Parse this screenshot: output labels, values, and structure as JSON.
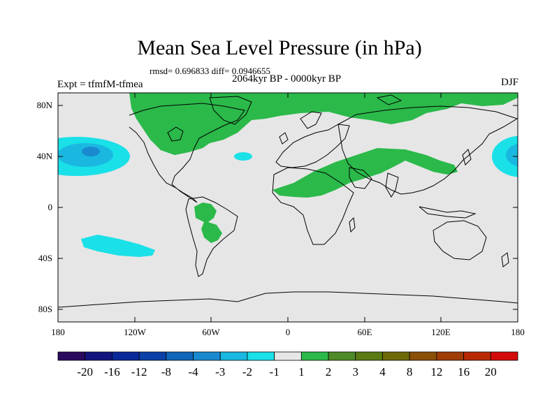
{
  "title": "Mean Sea Level Pressure (in hPa)",
  "stats": "rmsd= 0.696833 diff= 0.0946655",
  "period": "2064kyr BP - 0000kyr BP",
  "experiment": "Expt = tfmfM-tfmea",
  "season": "DJF",
  "lat_labels": [
    "80N",
    "40N",
    "0",
    "40S",
    "80S"
  ],
  "lon_labels": [
    "180",
    "120W",
    "60W",
    "0",
    "60E",
    "120E",
    "180"
  ],
  "colorbar": {
    "labels": [
      "-20",
      "-16",
      "-12",
      "-8",
      "-4",
      "-3",
      "-2",
      "-1",
      "1",
      "2",
      "3",
      "4",
      "8",
      "12",
      "16",
      "20"
    ],
    "colors": [
      "#2a0a5e",
      "#14147e",
      "#0a2a9a",
      "#0a40a8",
      "#1066b8",
      "#1a8ad0",
      "#1ab8e0",
      "#1ae0e8",
      "#e6e6e6",
      "#2bb94a",
      "#4e8a28",
      "#5a7a14",
      "#6e6a08",
      "#8a5008",
      "#a03c06",
      "#b82a04",
      "#d40a0a"
    ]
  },
  "colors": {
    "background_field": "#e6e6e6",
    "positive_1_2": "#2bb94a",
    "negative_1_2": "#1ae0e8",
    "negative_2_3": "#1ab8e0",
    "negative_3_4": "#1a8ad0"
  }
}
